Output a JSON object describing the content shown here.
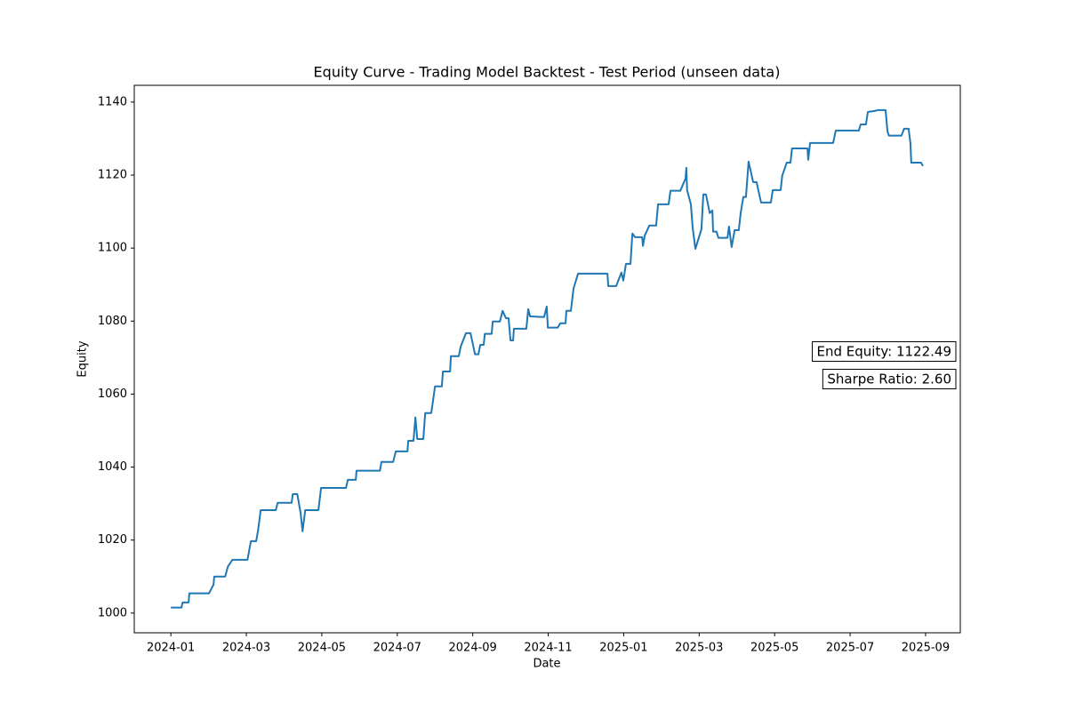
{
  "chart_data": {
    "type": "line",
    "title": "Equity Curve - Trading Model Backtest - Test Period (unseen data)",
    "x_label": "Date",
    "y_label": "Equity",
    "color": "#1f77b4",
    "x": [
      0,
      0.28,
      0.31,
      0.47,
      0.49,
      1.01,
      1.13,
      1.15,
      1.44,
      1.51,
      1.63,
      2.03,
      2.12,
      2.26,
      2.31,
      2.38,
      2.78,
      2.83,
      3.2,
      3.23,
      3.35,
      3.44,
      3.49,
      3.56,
      3.91,
      3.98,
      4.64,
      4.69,
      4.9,
      4.92,
      5.54,
      5.58,
      5.89,
      5.96,
      6.27,
      6.29,
      6.43,
      6.48,
      6.53,
      6.69,
      6.74,
      6.9,
      6.95,
      7.0,
      7.18,
      7.21,
      7.4,
      7.42,
      7.63,
      7.68,
      7.82,
      7.94,
      8.06,
      8.15,
      8.2,
      8.29,
      8.32,
      8.5,
      8.53,
      8.72,
      8.79,
      8.88,
      8.95,
      9.0,
      9.07,
      9.09,
      9.42,
      9.47,
      9.52,
      9.89,
      9.96,
      9.99,
      10.25,
      10.32,
      10.46,
      10.48,
      10.6,
      10.67,
      10.79,
      11.57,
      11.59,
      11.8,
      11.94,
      11.99,
      12.06,
      12.18,
      12.23,
      12.3,
      12.49,
      12.51,
      12.56,
      12.68,
      12.86,
      12.91,
      13.19,
      13.24,
      13.5,
      13.64,
      13.66,
      13.68,
      13.78,
      13.83,
      13.9,
      14.06,
      14.11,
      14.18,
      14.28,
      14.35,
      14.37,
      14.46,
      14.51,
      14.75,
      14.79,
      14.86,
      14.94,
      15.05,
      15.1,
      15.17,
      15.24,
      15.31,
      15.43,
      15.52,
      15.64,
      15.9,
      15.95,
      16.16,
      16.2,
      16.32,
      16.42,
      16.46,
      16.87,
      16.89,
      16.94,
      17.55,
      17.62,
      18.23,
      18.28,
      18.42,
      18.47,
      18.66,
      18.73,
      18.94,
      18.99,
      19.03,
      19.36,
      19.43,
      19.48,
      19.55,
      19.6,
      19.62,
      19.88,
      19.93
    ],
    "values": [
      1001.5,
      1001.5,
      1002.9,
      1002.9,
      1005.4,
      1005.4,
      1007.8,
      1010.0,
      1010.0,
      1012.7,
      1014.6,
      1014.6,
      1019.7,
      1019.7,
      1022.6,
      1028.2,
      1028.2,
      1030.2,
      1030.2,
      1032.6,
      1032.6,
      1027.3,
      1022.4,
      1028.2,
      1028.2,
      1034.3,
      1034.3,
      1036.5,
      1036.5,
      1039.0,
      1039.0,
      1041.4,
      1041.4,
      1044.3,
      1044.3,
      1047.2,
      1047.2,
      1053.6,
      1047.7,
      1047.7,
      1054.8,
      1054.8,
      1058.4,
      1062.1,
      1062.1,
      1066.2,
      1066.2,
      1070.4,
      1070.4,
      1073.0,
      1076.7,
      1076.7,
      1070.9,
      1070.9,
      1073.5,
      1073.5,
      1076.5,
      1076.5,
      1079.9,
      1079.9,
      1082.8,
      1080.8,
      1080.8,
      1074.7,
      1074.7,
      1077.9,
      1077.9,
      1083.3,
      1081.3,
      1081.1,
      1084.0,
      1078.2,
      1078.2,
      1079.4,
      1079.4,
      1082.8,
      1082.8,
      1088.9,
      1093.0,
      1093.0,
      1089.6,
      1089.6,
      1093.3,
      1091.1,
      1095.7,
      1095.7,
      1104.0,
      1103.0,
      1103.0,
      1100.6,
      1103.5,
      1106.2,
      1106.2,
      1112.0,
      1112.0,
      1115.7,
      1115.7,
      1119.1,
      1122.0,
      1115.9,
      1112.0,
      1105.4,
      1099.8,
      1105.2,
      1114.7,
      1114.7,
      1109.6,
      1110.3,
      1104.5,
      1104.5,
      1102.8,
      1102.8,
      1105.9,
      1100.3,
      1104.9,
      1104.9,
      1109.6,
      1114.0,
      1114.0,
      1123.7,
      1118.1,
      1118.1,
      1112.5,
      1112.5,
      1115.9,
      1115.9,
      1119.8,
      1123.4,
      1123.4,
      1127.3,
      1127.3,
      1124.2,
      1128.8,
      1128.8,
      1132.2,
      1132.2,
      1133.9,
      1133.9,
      1137.3,
      1137.6,
      1137.8,
      1137.8,
      1132.0,
      1130.8,
      1130.8,
      1132.7,
      1132.7,
      1132.7,
      1128.6,
      1123.4,
      1123.4,
      1122.49
    ],
    "xlim": [
      -0.97,
      20.92
    ],
    "xticks": [
      {
        "value": 0,
        "label": "2024-01"
      },
      {
        "value": 2,
        "label": "2024-03"
      },
      {
        "value": 4,
        "label": "2024-05"
      },
      {
        "value": 6,
        "label": "2024-07"
      },
      {
        "value": 8,
        "label": "2024-09"
      },
      {
        "value": 10,
        "label": "2024-11"
      },
      {
        "value": 12,
        "label": "2025-01"
      },
      {
        "value": 14,
        "label": "2025-03"
      },
      {
        "value": 16,
        "label": "2025-05"
      },
      {
        "value": 18,
        "label": "2025-07"
      },
      {
        "value": 20,
        "label": "2025-09"
      }
    ],
    "ylim": [
      994.6,
      1144.6
    ],
    "yticks": [
      1000,
      1020,
      1040,
      1060,
      1080,
      1100,
      1120,
      1140
    ],
    "annotations": [
      "End Equity: 1122.49",
      "Sharpe Ratio: 2.60"
    ],
    "grid": false
  }
}
